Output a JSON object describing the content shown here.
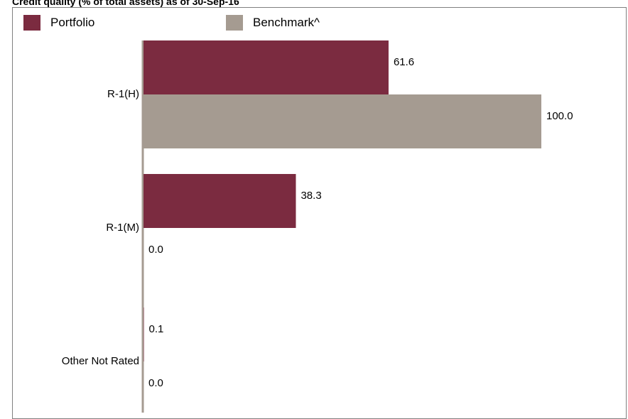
{
  "chart_data": {
    "type": "bar",
    "orientation": "horizontal",
    "title": "Credit quality (% of total assets) as of 30-Sep-16",
    "categories": [
      "R-1(H)",
      "R-1(M)",
      "Other Not Rated"
    ],
    "series": [
      {
        "name": "Portfolio",
        "values": [
          61.6,
          38.3,
          0.1
        ]
      },
      {
        "name": "Benchmark^",
        "values": [
          100.0,
          0.0,
          0.0
        ]
      }
    ],
    "value_labels": [
      [
        "61.6",
        "38.3",
        "0.1"
      ],
      [
        "100.0",
        "0.0",
        "0.0"
      ]
    ],
    "xlim": [
      0,
      100
    ],
    "grid": false,
    "legend_position": "top",
    "colors": {
      "Portfolio": "#7b2b40",
      "Benchmark^": "#a59b91",
      "axis": "#a59b91"
    }
  }
}
